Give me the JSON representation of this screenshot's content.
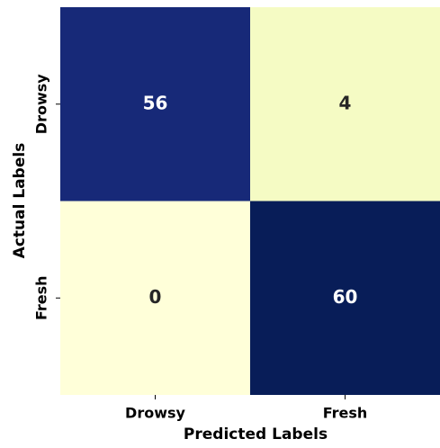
{
  "chart_data": {
    "type": "heatmap",
    "x_categories": [
      "Drowsy",
      "Fresh"
    ],
    "y_categories": [
      "Drowsy",
      "Fresh"
    ],
    "values": [
      [
        56,
        4
      ],
      [
        0,
        60
      ]
    ],
    "xlabel": "Predicted Labels",
    "ylabel": "Actual Labels",
    "colormap": "YlGnBu"
  }
}
